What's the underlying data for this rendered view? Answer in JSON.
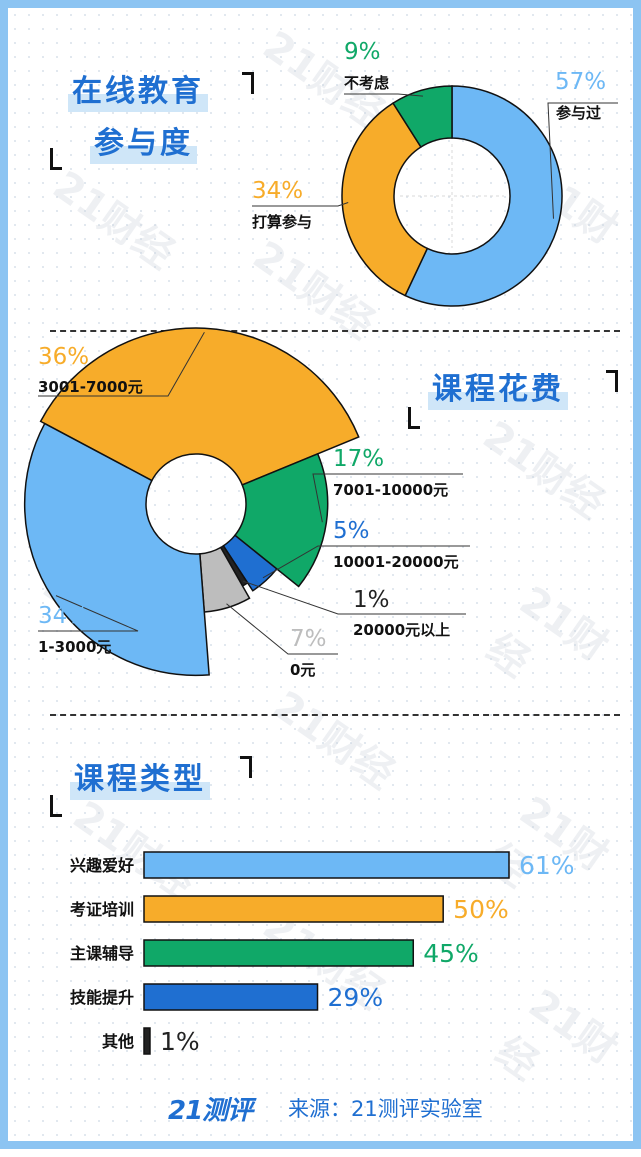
{
  "colors": {
    "light_blue": "#6db8f5",
    "orange": "#f7ac2a",
    "green": "#10a868",
    "blue": "#1f6fd1",
    "gray": "#bdbdbd",
    "dark": "#222222"
  },
  "watermark": "21财经",
  "footer": {
    "logo": "21测评",
    "source": "来源：21测评实验室"
  },
  "chart_data": [
    {
      "type": "pie",
      "variant": "donut",
      "title": "在线教育参与度",
      "title_line1": "在线教育",
      "title_line2": "参与度",
      "slices": [
        {
          "label": "参与过",
          "value": 57,
          "text": "57%",
          "color": "#6db8f5"
        },
        {
          "label": "打算参与",
          "value": 34,
          "text": "34%",
          "color": "#f7ac2a"
        },
        {
          "label": "不考虑",
          "value": 9,
          "text": "9%",
          "color": "#10a868"
        }
      ]
    },
    {
      "type": "pie",
      "variant": "rose-donut",
      "title": "课程花费",
      "slices": [
        {
          "label": "3001-7000元",
          "value": 36,
          "text": "36%",
          "color": "#f7ac2a"
        },
        {
          "label": "7001-10000元",
          "value": 17,
          "text": "17%",
          "color": "#10a868"
        },
        {
          "label": "10001-20000元",
          "value": 5,
          "text": "5%",
          "color": "#1f6fd1"
        },
        {
          "label": "20000元以上",
          "value": 1,
          "text": "1%",
          "color": "#222222"
        },
        {
          "label": "0元",
          "value": 7,
          "text": "7%",
          "color": "#bdbdbd"
        },
        {
          "label": "1-3000元",
          "value": 34,
          "text": "34%",
          "color": "#6db8f5"
        }
      ]
    },
    {
      "type": "bar",
      "orientation": "horizontal",
      "title": "课程类型",
      "xlim": [
        0,
        61
      ],
      "categories": [
        "兴趣爱好",
        "考证培训",
        "主课辅导",
        "技能提升",
        "其他"
      ],
      "values": [
        61,
        50,
        45,
        29,
        1
      ],
      "value_labels": [
        "61%",
        "50%",
        "45%",
        "29%",
        "1%"
      ],
      "colors": [
        "#6db8f5",
        "#f7ac2a",
        "#10a868",
        "#1f6fd1",
        "#222222"
      ]
    }
  ]
}
